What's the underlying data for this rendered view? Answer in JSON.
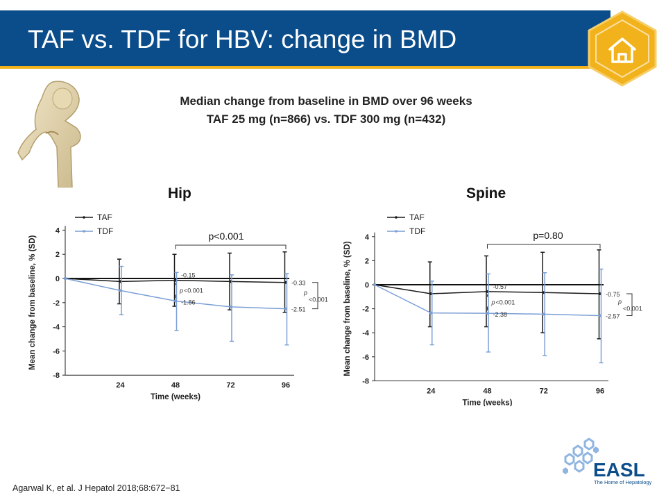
{
  "slide": {
    "title": "TAF vs. TDF for HBV: change in BMD",
    "subtitle_line1": "Median change from baseline in BMD over 96 weeks",
    "subtitle_line2": "TAF 25 mg (n=866) vs. TDF 300 mg (n=432)",
    "reference": "Agarwal K, et al. J Hepatol 2018;68:672−81",
    "home_icon": "home-icon",
    "logo": {
      "text": "EASL",
      "tagline": "The Home of Hepatology",
      "brand_color": "#0b4d8a"
    },
    "colors": {
      "title_bar": "#0b4d8a",
      "accent": "#f2b21c",
      "taf": "#1a1a1a",
      "tdf": "#7b9fd4"
    }
  },
  "chart_data": [
    {
      "type": "line",
      "title": "Hip",
      "xlabel": "Time (weeks)",
      "ylabel": "Mean change from baseline, % (SD)",
      "x": [
        0,
        24,
        48,
        72,
        96
      ],
      "x_ticks": [
        "24",
        "48",
        "72",
        "96"
      ],
      "y_ticks": [
        "4",
        "2",
        "0",
        "-2",
        "-4",
        "-6",
        "-8"
      ],
      "ylim": [
        -8,
        4
      ],
      "legend": [
        "TAF",
        "TDF"
      ],
      "overall_p": "p<0.001",
      "series": [
        {
          "name": "TAF",
          "values": [
            0,
            -0.25,
            -0.15,
            -0.25,
            -0.33
          ],
          "err_high": [
            0,
            1.6,
            2.0,
            2.1,
            2.2
          ],
          "err_low": [
            0,
            -2.1,
            -2.3,
            -2.6,
            -2.8
          ]
        },
        {
          "name": "TDF",
          "values": [
            0,
            -1.0,
            -1.86,
            -2.35,
            -2.51
          ],
          "err_high": [
            0,
            1.0,
            0.5,
            0.3,
            0.4
          ],
          "err_low": [
            0,
            -3.0,
            -4.3,
            -5.2,
            -5.5
          ]
        }
      ],
      "annotations": {
        "taf_end": "-0.33",
        "tdf_end": "-2.51",
        "taf_w48": "-0.15",
        "tdf_w48": "-1.86",
        "p48_label": "p",
        "p48_value": "<0.001",
        "p_end_label": "p",
        "p_end_value": "<0.001"
      }
    },
    {
      "type": "line",
      "title": "Spine",
      "xlabel": "Time (weeks)",
      "ylabel": "Mean change from baseline, % (SD)",
      "x": [
        0,
        24,
        48,
        72,
        96
      ],
      "x_ticks": [
        "24",
        "48",
        "72",
        "96"
      ],
      "y_ticks": [
        "4",
        "2",
        "0",
        "-2",
        "-4",
        "-6",
        "-8"
      ],
      "ylim": [
        -8,
        4
      ],
      "legend": [
        "TAF",
        "TDF"
      ],
      "overall_p": "p=0.80",
      "series": [
        {
          "name": "TAF",
          "values": [
            0,
            -0.75,
            -0.57,
            -0.65,
            -0.75
          ],
          "err_high": [
            0,
            1.9,
            2.4,
            2.7,
            2.9
          ],
          "err_low": [
            0,
            -3.5,
            -3.5,
            -4.0,
            -4.5
          ]
        },
        {
          "name": "TDF",
          "values": [
            0,
            -2.35,
            -2.38,
            -2.45,
            -2.57
          ],
          "err_high": [
            0,
            0.3,
            0.9,
            1.0,
            1.3
          ],
          "err_low": [
            0,
            -5.0,
            -5.6,
            -5.9,
            -6.5
          ]
        }
      ],
      "annotations": {
        "taf_end": "-0.75",
        "tdf_end": "-2.57",
        "taf_w48": "-0.57",
        "tdf_w48": "-2.38",
        "p48_label": "p",
        "p48_value": "<0.001",
        "p_end_label": "p",
        "p_end_value": "<0.001"
      }
    }
  ]
}
